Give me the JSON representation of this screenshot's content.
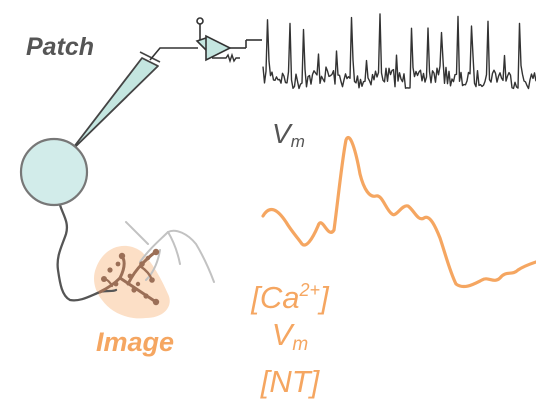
{
  "labels": {
    "patch": "Patch",
    "vm_trace": {
      "base": "V",
      "subscript": "m"
    },
    "image": "Image",
    "readouts": {
      "calcium": {
        "open": "[Ca",
        "superscript": "2+",
        "close": "]"
      },
      "voltage": {
        "base": "V",
        "subscript": "m"
      },
      "neurotransmitter": "[NT]"
    }
  },
  "colors": {
    "text_dark": "#555555",
    "neuron_fill": "#d2ecea",
    "neuron_stroke": "#777777",
    "dendrite_dark": "#555555",
    "dendrite_light": "#c2c2c2",
    "pipette_fill": "#c4e6e0",
    "orange": "#f5a661",
    "image_glow": "#fbd9bc",
    "spine_brown": "#9b6f57",
    "trace_black": "#333333"
  },
  "icons": [
    "amplifier-icon",
    "ground-icon"
  ]
}
